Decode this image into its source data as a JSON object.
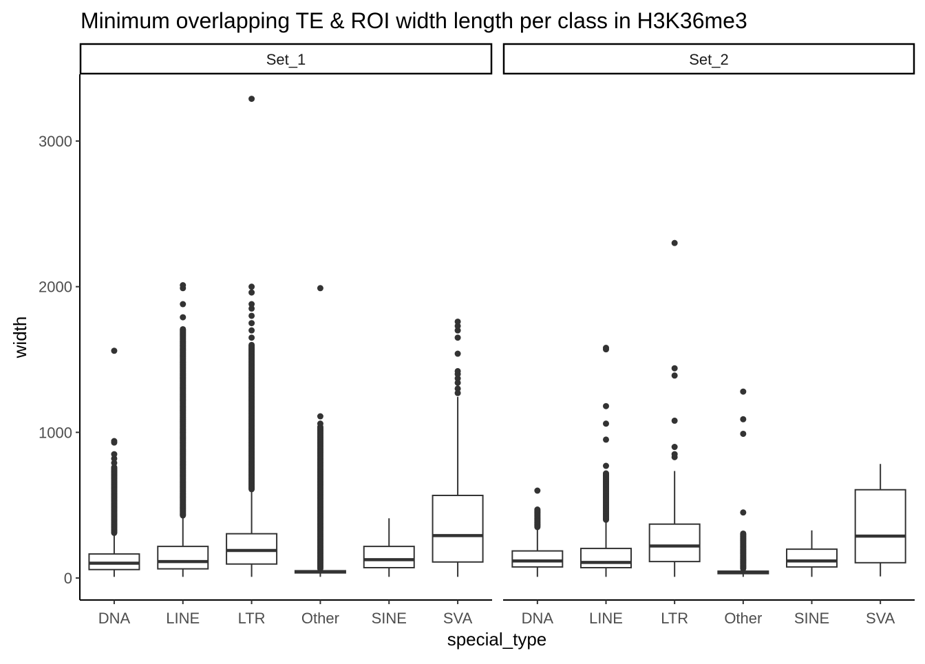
{
  "chart_data": {
    "type": "boxplot",
    "title": "Minimum overlapping TE & ROI width length per class in H3K36me3",
    "xlabel": "special_type",
    "ylabel": "width",
    "ylim": [
      -151,
      3458
    ],
    "yticks": [
      0,
      1000,
      2000,
      3000
    ],
    "yticklabels": [
      "0",
      "1000",
      "2000",
      "3000"
    ],
    "grid": false,
    "categories": [
      "DNA",
      "LINE",
      "LTR",
      "Other",
      "SINE",
      "SVA"
    ],
    "color": "#333333",
    "facets": [
      {
        "name": "Set_1",
        "boxes": [
          {
            "category": "DNA",
            "lower": 8,
            "q1": 58,
            "median": 102,
            "q3": 165,
            "upper": 307,
            "dense_outlier_range": [
              310,
              760
            ],
            "outliers": [
              790,
              820,
              850,
              930,
              940,
              1560
            ]
          },
          {
            "category": "LINE",
            "lower": 8,
            "q1": 63,
            "median": 113,
            "q3": 217,
            "upper": 425,
            "dense_outlier_range": [
              430,
              1710
            ],
            "outliers": [
              1790,
              1880,
              1990,
              2010
            ]
          },
          {
            "category": "LTR",
            "lower": 8,
            "q1": 96,
            "median": 189,
            "q3": 304,
            "upper": 606,
            "dense_outlier_range": [
              610,
              1600
            ],
            "outliers": [
              1650,
              1700,
              1750,
              1800,
              1850,
              1880,
              1960,
              2000,
              3290
            ]
          },
          {
            "category": "Other",
            "lower": 8,
            "q1": 35,
            "median": 42,
            "q3": 50,
            "upper": 63,
            "dense_outlier_range": [
              65,
              1040
            ],
            "outliers": [
              1060,
              1110,
              1990
            ]
          },
          {
            "category": "SINE",
            "lower": 8,
            "q1": 71,
            "median": 126,
            "q3": 217,
            "upper": 410,
            "dense_outlier_range": null,
            "outliers": []
          },
          {
            "category": "SVA",
            "lower": 8,
            "q1": 110,
            "median": 291,
            "q3": 567,
            "upper": 1244,
            "dense_outlier_range": null,
            "outliers": [
              1270,
              1300,
              1340,
              1370,
              1400,
              1420,
              1540,
              1650,
              1700,
              1730,
              1760
            ]
          }
        ]
      },
      {
        "name": "Set_2",
        "boxes": [
          {
            "category": "DNA",
            "lower": 8,
            "q1": 76,
            "median": 117,
            "q3": 186,
            "upper": 346,
            "dense_outlier_range": [
              350,
              470
            ],
            "outliers": [
              600
            ]
          },
          {
            "category": "LINE",
            "lower": 8,
            "q1": 71,
            "median": 107,
            "q3": 203,
            "upper": 394,
            "dense_outlier_range": [
              400,
              720
            ],
            "outliers": [
              770,
              950,
              1060,
              1180,
              1570,
              1580
            ]
          },
          {
            "category": "LTR",
            "lower": 8,
            "q1": 113,
            "median": 220,
            "q3": 370,
            "upper": 735,
            "dense_outlier_range": null,
            "outliers": [
              830,
              850,
              900,
              1080,
              1390,
              1440,
              2300
            ]
          },
          {
            "category": "Other",
            "lower": 8,
            "q1": 30,
            "median": 40,
            "q3": 47,
            "upper": 60,
            "dense_outlier_range": [
              65,
              310
            ],
            "outliers": [
              450,
              990,
              1090,
              1280
            ]
          },
          {
            "category": "SINE",
            "lower": 8,
            "q1": 76,
            "median": 117,
            "q3": 198,
            "upper": 327,
            "dense_outlier_range": null,
            "outliers": []
          },
          {
            "category": "SVA",
            "lower": 11,
            "q1": 105,
            "median": 288,
            "q3": 606,
            "upper": 783,
            "dense_outlier_range": null,
            "outliers": []
          }
        ]
      }
    ]
  }
}
